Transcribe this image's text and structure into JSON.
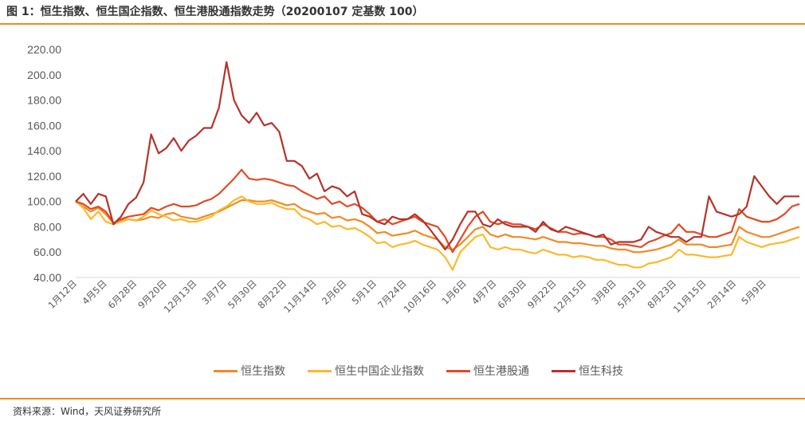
{
  "title": "图 1：恒生指数、恒生国企指数、恒生港股通指数走势（20200107 定基数 100）",
  "source": "资料来源：Wind，天风证券研究所",
  "chart_data": {
    "type": "line",
    "title": "图 1：恒生指数、恒生国企指数、恒生港股通指数走势（20200107 定基数 100）",
    "xlabel": "",
    "ylabel": "",
    "ylim": [
      40,
      220
    ],
    "yticks": [
      "220.00",
      "200.00",
      "180.00",
      "160.00",
      "140.00",
      "120.00",
      "100.00",
      "80.00",
      "60.00",
      "40.00"
    ],
    "ytick_values": [
      220,
      200,
      180,
      160,
      140,
      120,
      100,
      80,
      60,
      40
    ],
    "x_tick_labels": [
      "1月12日",
      "4月5日",
      "6月28日",
      "9月20日",
      "12月13日",
      "3月7日",
      "5月30日",
      "8月22日",
      "11月14日",
      "2月6日",
      "5月1日",
      "7月24日",
      "10月16日",
      "1月6日",
      "4月7日",
      "6月30日",
      "9月22日",
      "12月15日",
      "3月8日",
      "5月31日",
      "8月23日",
      "11月15日",
      "2月14日",
      "5月9日"
    ],
    "grid": false,
    "legend_position": "bottom",
    "series": [
      {
        "name": "恒生指数",
        "color": "#f08a24",
        "values": [
          100,
          96,
          92,
          95,
          90,
          83,
          85,
          86,
          85,
          86,
          88,
          87,
          90,
          91,
          88,
          87,
          86,
          88,
          90,
          92,
          95,
          98,
          101,
          101,
          100,
          100,
          101,
          99,
          97,
          98,
          94,
          92,
          90,
          91,
          87,
          88,
          85,
          86,
          84,
          80,
          75,
          76,
          73,
          74,
          75,
          77,
          74,
          72,
          70,
          64,
          62,
          66,
          72,
          78,
          80,
          74,
          72,
          74,
          72,
          72,
          71,
          70,
          72,
          70,
          68,
          68,
          67,
          67,
          66,
          65,
          65,
          63,
          62,
          62,
          60,
          60,
          61,
          62,
          64,
          66,
          70,
          66,
          66,
          66,
          64,
          64,
          65,
          66,
          80,
          76,
          74,
          72,
          72,
          74,
          76,
          78,
          80
        ]
      },
      {
        "name": "恒生中国企业指数",
        "color": "#fbb92a",
        "values": [
          100,
          95,
          86,
          92,
          84,
          82,
          84,
          86,
          85,
          88,
          93,
          90,
          88,
          85,
          86,
          84,
          84,
          86,
          88,
          93,
          96,
          101,
          104,
          100,
          98,
          98,
          99,
          96,
          94,
          94,
          88,
          86,
          82,
          84,
          80,
          81,
          78,
          79,
          76,
          72,
          67,
          68,
          64,
          66,
          67,
          69,
          66,
          64,
          62,
          56,
          46,
          60,
          66,
          72,
          74,
          64,
          62,
          64,
          62,
          62,
          60,
          59,
          62,
          60,
          58,
          58,
          56,
          57,
          56,
          54,
          54,
          52,
          50,
          50,
          48,
          48,
          51,
          52,
          54,
          56,
          62,
          58,
          58,
          57,
          56,
          56,
          57,
          58,
          72,
          68,
          66,
          64,
          66,
          67,
          68,
          70,
          72
        ]
      },
      {
        "name": "恒生港股通",
        "color": "#e04a26",
        "values": [
          100,
          98,
          94,
          96,
          92,
          83,
          86,
          88,
          89,
          90,
          95,
          93,
          96,
          98,
          96,
          96,
          97,
          100,
          102,
          106,
          112,
          118,
          125,
          118,
          117,
          118,
          117,
          115,
          113,
          112,
          108,
          105,
          102,
          104,
          98,
          100,
          96,
          98,
          95,
          90,
          84,
          86,
          82,
          84,
          86,
          88,
          84,
          82,
          80,
          72,
          60,
          70,
          80,
          88,
          92,
          84,
          82,
          84,
          82,
          82,
          80,
          78,
          82,
          79,
          76,
          76,
          74,
          75,
          74,
          72,
          72,
          70,
          66,
          66,
          65,
          64,
          68,
          70,
          73,
          75,
          82,
          76,
          76,
          74,
          72,
          72,
          74,
          76,
          94,
          88,
          86,
          84,
          84,
          86,
          90,
          96,
          98
        ]
      },
      {
        "name": "恒生科技",
        "color": "#b5332a",
        "values": [
          100,
          106,
          98,
          106,
          104,
          82,
          88,
          98,
          103,
          115,
          153,
          138,
          142,
          150,
          140,
          148,
          152,
          158,
          158,
          174,
          210,
          180,
          168,
          162,
          170,
          160,
          162,
          155,
          132,
          132,
          128,
          118,
          122,
          108,
          112,
          110,
          104,
          108,
          90,
          88,
          84,
          82,
          88,
          86,
          86,
          90,
          85,
          78,
          70,
          62,
          70,
          82,
          92,
          92,
          82,
          80,
          86,
          82,
          80,
          80,
          80,
          76,
          84,
          78,
          76,
          80,
          78,
          76,
          74,
          72,
          74,
          66,
          68,
          68,
          68,
          70,
          80,
          76,
          74,
          72,
          72,
          68,
          72,
          72,
          104,
          92,
          90,
          88,
          90,
          96,
          120,
          112,
          104,
          98,
          104,
          104,
          104
        ]
      }
    ]
  }
}
